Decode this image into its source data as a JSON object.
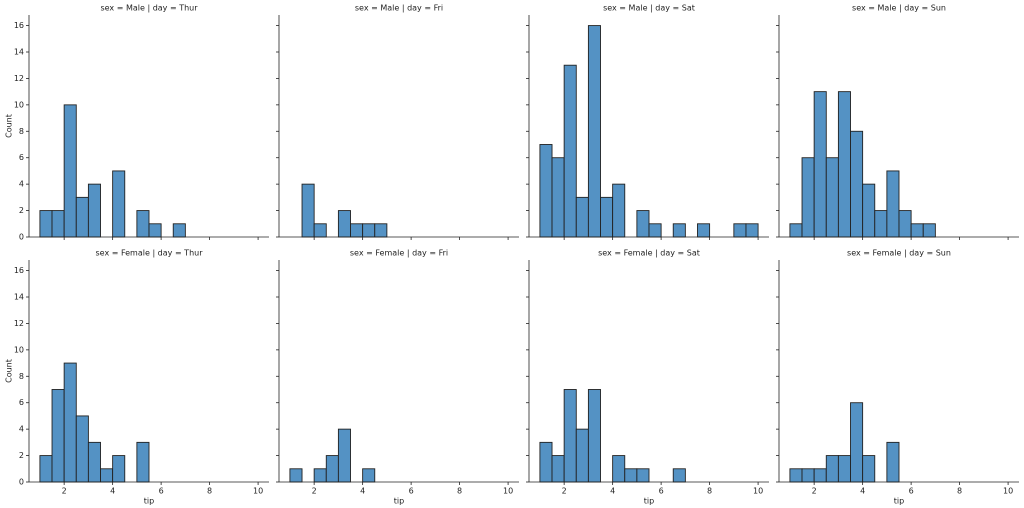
{
  "chart_data": [
    {
      "type": "histogram",
      "title": "sex = Male | day = Thur",
      "ylabel": "Count",
      "color": "#5492c4",
      "bins": [
        1,
        1.5,
        2,
        2.5,
        3,
        3.5,
        4,
        4.5,
        5,
        5.5,
        6,
        6.5,
        7,
        7.5,
        8,
        8.5,
        9,
        9.5,
        10
      ],
      "values": [
        2,
        2,
        10,
        3,
        4,
        0,
        5,
        0,
        2,
        1,
        0,
        1,
        0,
        0,
        0,
        0,
        0,
        0
      ],
      "xlim": [
        0.55,
        10.45
      ],
      "ylim": [
        0,
        16.8
      ],
      "xticks": [
        2,
        4,
        6,
        8,
        10
      ],
      "yticks": [
        0,
        2,
        4,
        6,
        8,
        10,
        12,
        14,
        16
      ]
    },
    {
      "type": "histogram",
      "title": "sex = Male | day = Fri",
      "color": "#5492c4",
      "bins": [
        1,
        1.5,
        2,
        2.5,
        3,
        3.5,
        4,
        4.5,
        5,
        5.5,
        6,
        6.5,
        7,
        7.5,
        8,
        8.5,
        9,
        9.5,
        10
      ],
      "values": [
        0,
        4,
        1,
        0,
        2,
        1,
        1,
        1,
        0,
        0,
        0,
        0,
        0,
        0,
        0,
        0,
        0,
        0
      ],
      "xlim": [
        0.55,
        10.45
      ],
      "ylim": [
        0,
        16.8
      ],
      "xticks": [
        2,
        4,
        6,
        8,
        10
      ],
      "yticks": [
        0,
        2,
        4,
        6,
        8,
        10,
        12,
        14,
        16
      ]
    },
    {
      "type": "histogram",
      "title": "sex = Male | day = Sat",
      "color": "#5492c4",
      "bins": [
        1,
        1.5,
        2,
        2.5,
        3,
        3.5,
        4,
        4.5,
        5,
        5.5,
        6,
        6.5,
        7,
        7.5,
        8,
        8.5,
        9,
        9.5,
        10
      ],
      "values": [
        7,
        6,
        13,
        3,
        16,
        3,
        4,
        0,
        2,
        1,
        0,
        1,
        0,
        1,
        0,
        0,
        1,
        1
      ],
      "xlim": [
        0.55,
        10.45
      ],
      "ylim": [
        0,
        16.8
      ],
      "xticks": [
        2,
        4,
        6,
        8,
        10
      ],
      "yticks": [
        0,
        2,
        4,
        6,
        8,
        10,
        12,
        14,
        16
      ]
    },
    {
      "type": "histogram",
      "title": "sex = Male | day = Sun",
      "color": "#5492c4",
      "bins": [
        1,
        1.5,
        2,
        2.5,
        3,
        3.5,
        4,
        4.5,
        5,
        5.5,
        6,
        6.5,
        7,
        7.5,
        8,
        8.5,
        9,
        9.5,
        10
      ],
      "values": [
        1,
        6,
        11,
        6,
        11,
        8,
        4,
        2,
        5,
        2,
        1,
        1,
        0,
        0,
        0,
        0,
        0,
        0
      ],
      "xlim": [
        0.55,
        10.45
      ],
      "ylim": [
        0,
        16.8
      ],
      "xticks": [
        2,
        4,
        6,
        8,
        10
      ],
      "yticks": [
        0,
        2,
        4,
        6,
        8,
        10,
        12,
        14,
        16
      ]
    },
    {
      "type": "histogram",
      "title": "sex = Female | day = Thur",
      "xlabel": "tip",
      "ylabel": "Count",
      "color": "#5492c4",
      "bins": [
        1,
        1.5,
        2,
        2.5,
        3,
        3.5,
        4,
        4.5,
        5,
        5.5,
        6,
        6.5,
        7,
        7.5,
        8,
        8.5,
        9,
        9.5,
        10
      ],
      "values": [
        2,
        7,
        9,
        5,
        3,
        1,
        2,
        0,
        3,
        0,
        0,
        0,
        0,
        0,
        0,
        0,
        0,
        0
      ],
      "xlim": [
        0.55,
        10.45
      ],
      "ylim": [
        0,
        16.8
      ],
      "xticks": [
        2,
        4,
        6,
        8,
        10
      ],
      "yticks": [
        0,
        2,
        4,
        6,
        8,
        10,
        12,
        14,
        16
      ]
    },
    {
      "type": "histogram",
      "title": "sex = Female | day = Fri",
      "xlabel": "tip",
      "color": "#5492c4",
      "bins": [
        1,
        1.5,
        2,
        2.5,
        3,
        3.5,
        4,
        4.5,
        5,
        5.5,
        6,
        6.5,
        7,
        7.5,
        8,
        8.5,
        9,
        9.5,
        10
      ],
      "values": [
        1,
        0,
        1,
        2,
        4,
        0,
        1,
        0,
        0,
        0,
        0,
        0,
        0,
        0,
        0,
        0,
        0,
        0
      ],
      "xlim": [
        0.55,
        10.45
      ],
      "ylim": [
        0,
        16.8
      ],
      "xticks": [
        2,
        4,
        6,
        8,
        10
      ],
      "yticks": [
        0,
        2,
        4,
        6,
        8,
        10,
        12,
        14,
        16
      ]
    },
    {
      "type": "histogram",
      "title": "sex = Female | day = Sat",
      "xlabel": "tip",
      "color": "#5492c4",
      "bins": [
        1,
        1.5,
        2,
        2.5,
        3,
        3.5,
        4,
        4.5,
        5,
        5.5,
        6,
        6.5,
        7,
        7.5,
        8,
        8.5,
        9,
        9.5,
        10
      ],
      "values": [
        3,
        2,
        7,
        4,
        7,
        0,
        2,
        1,
        1,
        0,
        0,
        1,
        0,
        0,
        0,
        0,
        0,
        0
      ],
      "xlim": [
        0.55,
        10.45
      ],
      "ylim": [
        0,
        16.8
      ],
      "xticks": [
        2,
        4,
        6,
        8,
        10
      ],
      "yticks": [
        0,
        2,
        4,
        6,
        8,
        10,
        12,
        14,
        16
      ]
    },
    {
      "type": "histogram",
      "title": "sex = Female | day = Sun",
      "xlabel": "tip",
      "color": "#5492c4",
      "bins": [
        1,
        1.5,
        2,
        2.5,
        3,
        3.5,
        4,
        4.5,
        5,
        5.5,
        6,
        6.5,
        7,
        7.5,
        8,
        8.5,
        9,
        9.5,
        10
      ],
      "values": [
        1,
        1,
        1,
        2,
        2,
        6,
        2,
        0,
        3,
        0,
        0,
        0,
        0,
        0,
        0,
        0,
        0,
        0
      ],
      "xlim": [
        0.55,
        10.45
      ],
      "ylim": [
        0,
        16.8
      ],
      "xticks": [
        2,
        4,
        6,
        8,
        10
      ],
      "yticks": [
        0,
        2,
        4,
        6,
        8,
        10,
        12,
        14,
        16
      ]
    }
  ]
}
